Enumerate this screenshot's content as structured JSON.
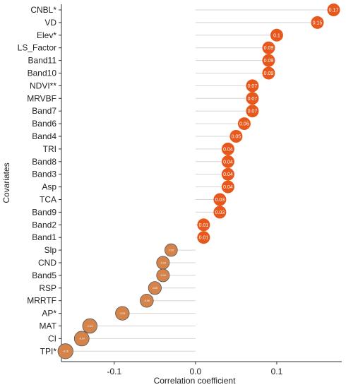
{
  "chart_data": {
    "type": "lollipop",
    "title": "",
    "xlabel": "Correlation coefficient",
    "ylabel": "Covariates",
    "xlim": [
      -0.165,
      0.18
    ],
    "x_ticks": [
      "-0.1",
      "0.0",
      "0.1"
    ],
    "x_tick_values": [
      -0.1,
      0.0,
      0.1
    ],
    "grid": false,
    "colors": {
      "positive": "#e8581c",
      "negative": "#d4844a",
      "negative_stroke": "#555555",
      "stem": "#d4d4d4"
    },
    "points": [
      {
        "covariate": "CNBL*",
        "value": 0.17,
        "label": "0.17"
      },
      {
        "covariate": "VD",
        "value": 0.15,
        "label": "0.15"
      },
      {
        "covariate": "Elev*",
        "value": 0.1,
        "label": "0.1"
      },
      {
        "covariate": "LS_Factor",
        "value": 0.09,
        "label": "0.09"
      },
      {
        "covariate": "Band11",
        "value": 0.09,
        "label": "0.09"
      },
      {
        "covariate": "Band10",
        "value": 0.09,
        "label": "0.09"
      },
      {
        "covariate": "NDVI**",
        "value": 0.07,
        "label": "0.07"
      },
      {
        "covariate": "MRVBF",
        "value": 0.07,
        "label": "0.07"
      },
      {
        "covariate": "Band7",
        "value": 0.07,
        "label": "0.07"
      },
      {
        "covariate": "Band6",
        "value": 0.06,
        "label": "0.06"
      },
      {
        "covariate": "Band4",
        "value": 0.05,
        "label": "0.05"
      },
      {
        "covariate": "TRI",
        "value": 0.04,
        "label": "0.04"
      },
      {
        "covariate": "Band8",
        "value": 0.04,
        "label": "0.04"
      },
      {
        "covariate": "Band3",
        "value": 0.04,
        "label": "0.04"
      },
      {
        "covariate": "Asp",
        "value": 0.04,
        "label": "0.04"
      },
      {
        "covariate": "TCA",
        "value": 0.03,
        "label": "0.03"
      },
      {
        "covariate": "Band9",
        "value": 0.03,
        "label": "0.03"
      },
      {
        "covariate": "Band2",
        "value": 0.01,
        "label": "0.01"
      },
      {
        "covariate": "Band1",
        "value": 0.01,
        "label": "0.01"
      },
      {
        "covariate": "Slp",
        "value": -0.03,
        "label": "-0.03"
      },
      {
        "covariate": "CND",
        "value": -0.04,
        "label": "-0.04"
      },
      {
        "covariate": "Band5",
        "value": -0.04,
        "label": "-0.04"
      },
      {
        "covariate": "RSP",
        "value": -0.05,
        "label": "-0.05"
      },
      {
        "covariate": "MRRTF",
        "value": -0.06,
        "label": "-0.06"
      },
      {
        "covariate": "AP*",
        "value": -0.09,
        "label": "-0.09"
      },
      {
        "covariate": "MAT",
        "value": -0.13,
        "label": "-0.13"
      },
      {
        "covariate": "CI",
        "value": -0.14,
        "label": "-0.14"
      },
      {
        "covariate": "TPI*",
        "value": -0.16,
        "label": "-0.16"
      }
    ]
  }
}
